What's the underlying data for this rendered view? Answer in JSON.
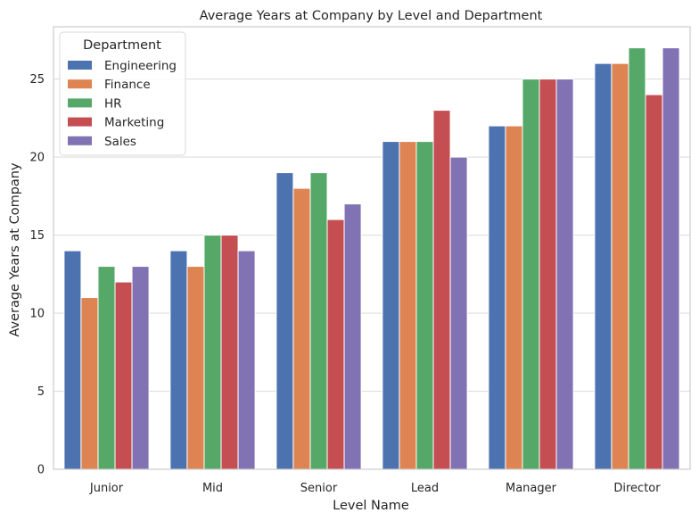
{
  "chart_data": {
    "type": "bar",
    "title": "Average Years at Company by Level and Department",
    "xlabel": "Level Name",
    "ylabel": "Average Years at Company",
    "categories": [
      "Junior",
      "Mid",
      "Senior",
      "Lead",
      "Manager",
      "Director"
    ],
    "series": [
      {
        "name": "Engineering",
        "color": "#4c72b0",
        "values": [
          14,
          14,
          19,
          21,
          22,
          26
        ]
      },
      {
        "name": "Finance",
        "color": "#dd8452",
        "values": [
          11,
          13,
          18,
          21,
          22,
          26
        ]
      },
      {
        "name": "HR",
        "color": "#55a868",
        "values": [
          13,
          15,
          19,
          21,
          25,
          27
        ]
      },
      {
        "name": "Marketing",
        "color": "#c44e52",
        "values": [
          12,
          15,
          16,
          23,
          25,
          24
        ]
      },
      {
        "name": "Sales",
        "color": "#8172b3",
        "values": [
          13,
          14,
          17,
          20,
          25,
          27
        ]
      }
    ],
    "ylim": [
      0,
      28.35
    ],
    "yticks": [
      0,
      5,
      10,
      15,
      20,
      25
    ],
    "grid": "horizontal",
    "legend": {
      "title": "Department",
      "placement": "top-left"
    }
  }
}
